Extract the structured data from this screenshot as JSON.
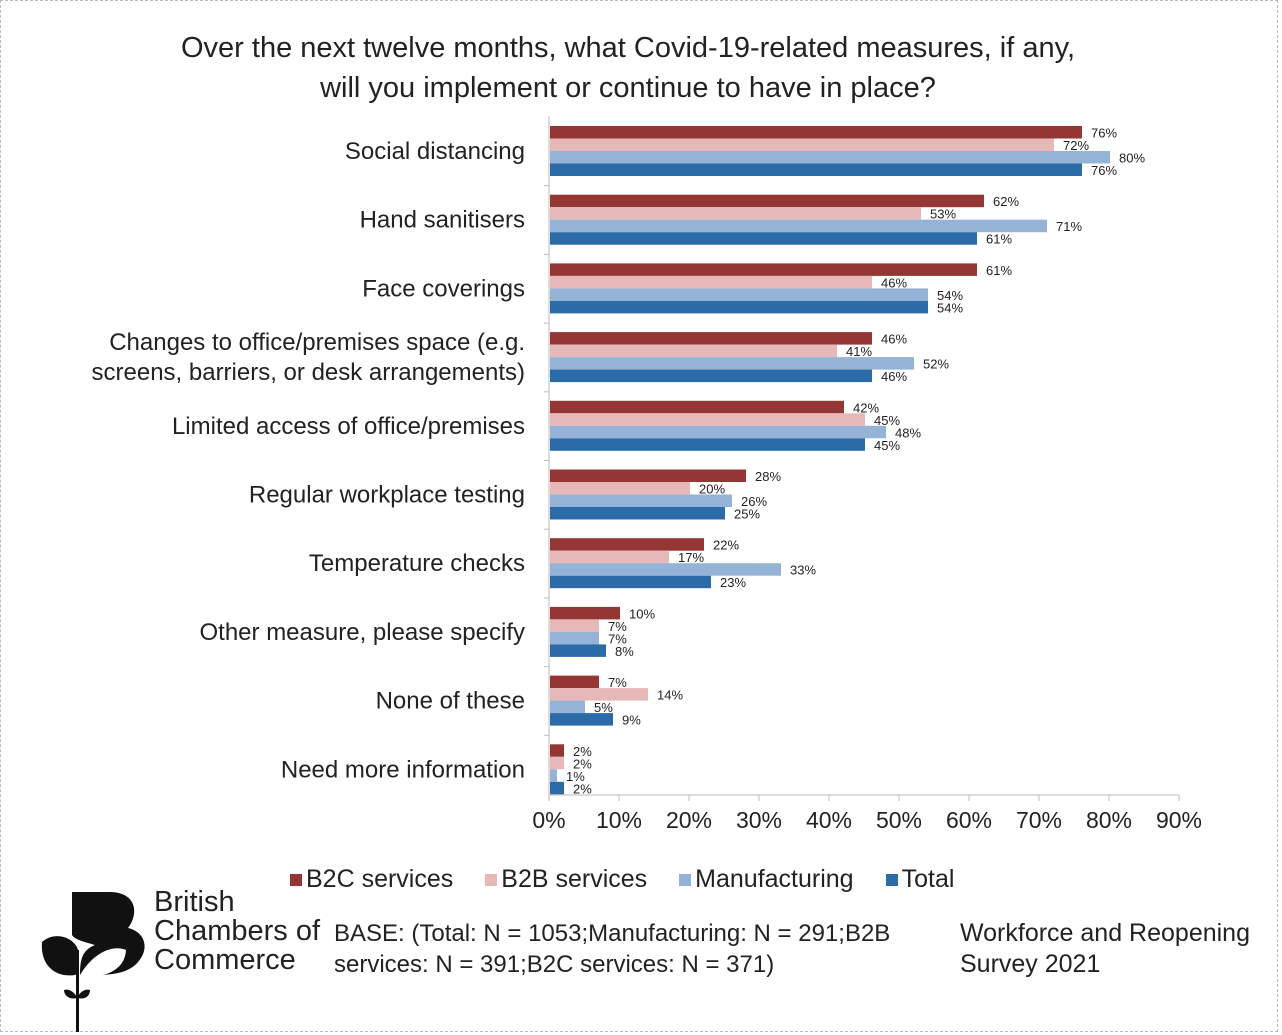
{
  "chart_data": {
    "type": "bar",
    "orientation": "horizontal",
    "title": "Over the next twelve months, what Covid-19-related measures, if any, will you implement or continue to have in place?",
    "title_lines": [
      "Over the next twelve months, what Covid-19-related measures, if any,",
      "will you implement or continue to have in place?"
    ],
    "categories": [
      [
        "Social distancing"
      ],
      [
        "Hand sanitisers"
      ],
      [
        "Face coverings"
      ],
      [
        "Changes to office/premises space (e.g.",
        "screens, barriers, or desk arrangements)"
      ],
      [
        "Limited access of office/premises"
      ],
      [
        "Regular workplace testing"
      ],
      [
        "Temperature checks"
      ],
      [
        "Other measure, please specify"
      ],
      [
        "None of these"
      ],
      [
        "Need more information"
      ]
    ],
    "series": [
      {
        "name": "B2C services",
        "color": "#943634",
        "values": [
          76,
          62,
          61,
          46,
          42,
          28,
          22,
          10,
          7,
          2
        ]
      },
      {
        "name": "B2B services",
        "color": "#E6B9B8",
        "values": [
          72,
          53,
          46,
          41,
          45,
          20,
          17,
          7,
          14,
          2
        ]
      },
      {
        "name": "Manufacturing",
        "color": "#95B3D7",
        "values": [
          80,
          71,
          54,
          52,
          48,
          26,
          33,
          7,
          5,
          1
        ]
      },
      {
        "name": "Total",
        "color": "#2B6CA8",
        "values": [
          76,
          61,
          54,
          46,
          45,
          25,
          23,
          8,
          9,
          2
        ]
      }
    ],
    "xlim": [
      0,
      90
    ],
    "xticks": [
      "0%",
      "10%",
      "20%",
      "30%",
      "40%",
      "50%",
      "60%",
      "70%",
      "80%",
      "90%"
    ],
    "legend_position": "bottom",
    "grid": false
  },
  "footer": {
    "logo_text": [
      "British",
      "Chambers of",
      "Commerce"
    ],
    "base_note": "BASE: (Total: N = 1053;Manufacturing: N = 291;B2B services: N = 391;B2C services: N = 371)",
    "survey_name": "Workforce and Reopening Survey 2021"
  }
}
